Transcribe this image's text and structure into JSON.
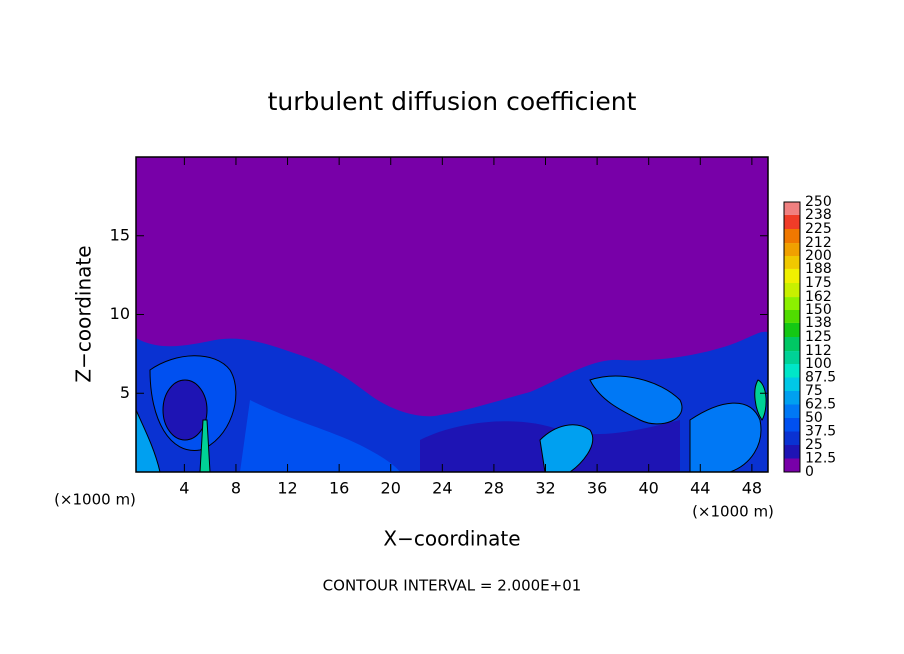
{
  "chart_data": {
    "type": "contour",
    "title": "turbulent diffusion coefficient",
    "xlabel": "X−coordinate",
    "ylabel": "Z−coordinate",
    "unit_label": "(×1000 m)",
    "footer": "CONTOUR INTERVAL = 2.000E+01",
    "xlim": [
      0.25,
      49.25
    ],
    "xticks": [
      4,
      8,
      12,
      16,
      20,
      24,
      28,
      32,
      36,
      40,
      44,
      48
    ],
    "ylim": [
      0,
      20
    ],
    "yticks": [
      5,
      10,
      15
    ],
    "colorbar": {
      "levels": [
        0,
        12.5,
        25,
        37.5,
        50,
        62.5,
        75,
        87.5,
        100,
        112,
        125,
        138,
        150,
        162,
        175,
        188,
        200,
        212,
        225,
        238,
        250
      ],
      "colors": [
        "#7800a8",
        "#1e14b4",
        "#0a32d2",
        "#0050f0",
        "#0078f5",
        "#00a0f0",
        "#00c8e6",
        "#00e6c8",
        "#00d296",
        "#00c864",
        "#14c814",
        "#50dc00",
        "#8cf000",
        "#c8f000",
        "#f0f000",
        "#f0c800",
        "#f0a000",
        "#f07800",
        "#f03c28",
        "#f08080"
      ]
    }
  }
}
